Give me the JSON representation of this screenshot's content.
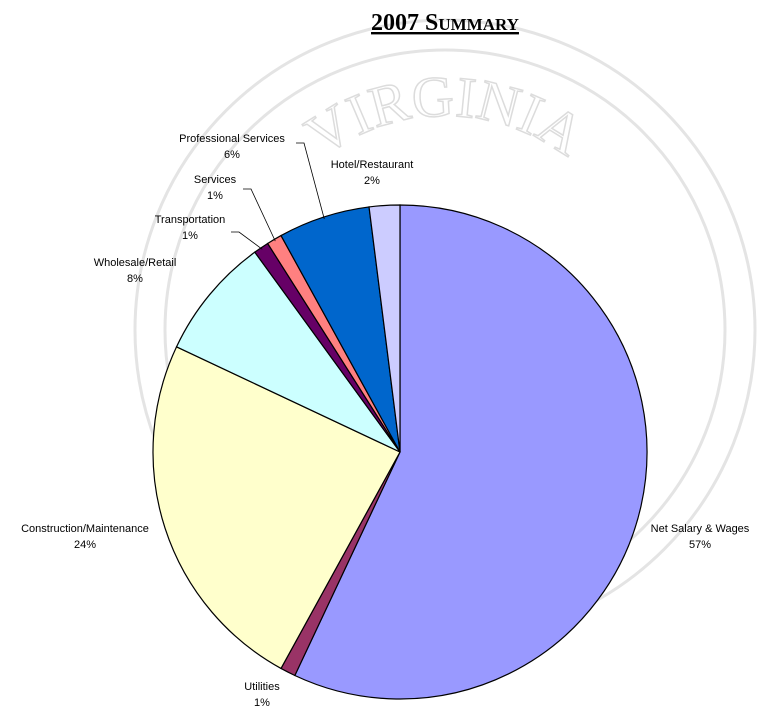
{
  "chart_data": {
    "type": "pie",
    "title": "2007 Summary",
    "watermark": "VIRGINIA",
    "categories": [
      "Net Salary & Wages",
      "Utilities",
      "Construction/Maintenance",
      "Wholesale/Retail",
      "Transportation",
      "Services",
      "Professional Services",
      "Hotel/Restaurant"
    ],
    "values": [
      57,
      1,
      24,
      8,
      1,
      1,
      6,
      2
    ],
    "value_labels": [
      "57%",
      "1%",
      "24%",
      "8%",
      "1%",
      "1%",
      "6%",
      "2%"
    ],
    "colors": [
      "#9999ff",
      "#993366",
      "#ffffcc",
      "#ccffff",
      "#660066",
      "#ff8080",
      "#0066cc",
      "#ccccff"
    ]
  }
}
